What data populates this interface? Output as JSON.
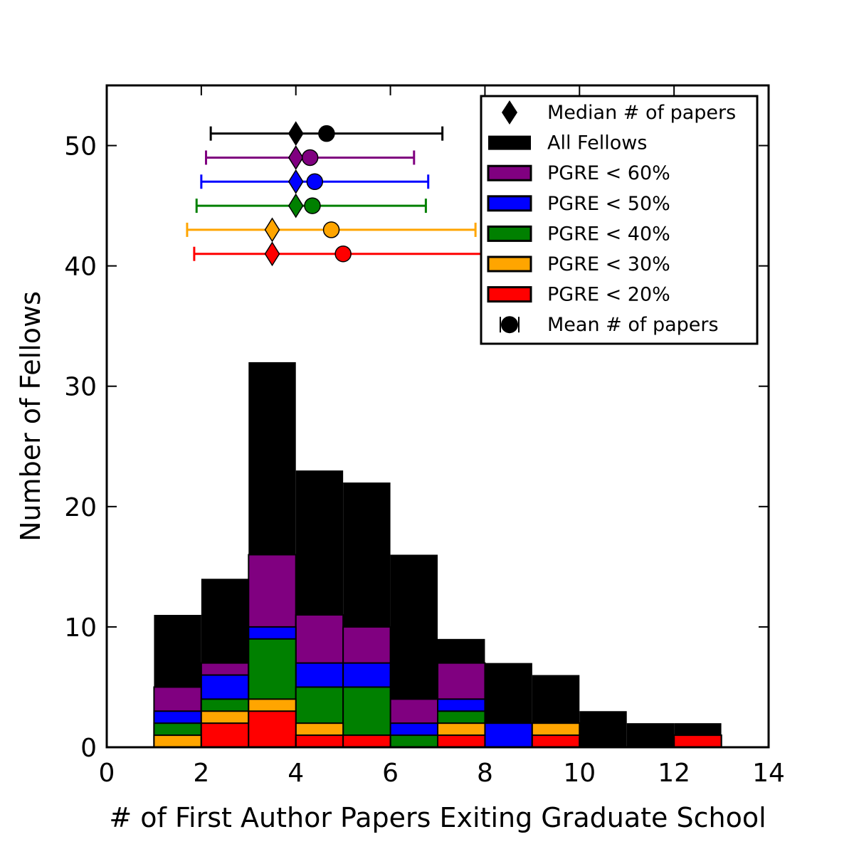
{
  "chart_data": {
    "type": "histogram",
    "title": "",
    "xlabel": "# of First Author Papers Exiting Graduate School",
    "ylabel": "Number of Fellows",
    "xlim": [
      0,
      14
    ],
    "ylim": [
      0,
      55
    ],
    "x_ticks": [
      0,
      2,
      4,
      6,
      8,
      10,
      12,
      14
    ],
    "y_ticks": [
      0,
      10,
      20,
      30,
      40,
      50
    ],
    "grid": false,
    "legend_position": "top-right",
    "bins": [
      [
        1,
        2
      ],
      [
        2,
        3
      ],
      [
        3,
        4
      ],
      [
        4,
        5
      ],
      [
        5,
        6
      ],
      [
        6,
        7
      ],
      [
        7,
        8
      ],
      [
        8,
        9
      ],
      [
        9,
        10
      ],
      [
        10,
        11
      ],
      [
        11,
        12
      ],
      [
        12,
        13
      ]
    ],
    "series": [
      {
        "name": "All Fellows",
        "color": "#000000",
        "values": [
          11,
          14,
          32,
          23,
          22,
          16,
          9,
          7,
          6,
          3,
          2,
          2
        ]
      },
      {
        "name": "PGRE < 60%",
        "color": "#800080",
        "values": [
          5,
          7,
          16,
          11,
          10,
          4,
          7,
          2,
          2,
          0,
          0,
          1
        ]
      },
      {
        "name": "PGRE < 50%",
        "color": "#0000ff",
        "values": [
          3,
          6,
          10,
          7,
          7,
          2,
          4,
          2,
          2,
          0,
          0,
          1
        ]
      },
      {
        "name": "PGRE < 40%",
        "color": "#008000",
        "values": [
          2,
          4,
          9,
          5,
          5,
          1,
          3,
          0,
          2,
          0,
          0,
          1
        ]
      },
      {
        "name": "PGRE < 30%",
        "color": "#ffa500",
        "values": [
          1,
          3,
          4,
          2,
          1,
          0,
          2,
          0,
          2,
          0,
          0,
          1
        ]
      },
      {
        "name": "PGRE < 20%",
        "color": "#ff0000",
        "values": [
          0,
          2,
          3,
          1,
          1,
          0,
          1,
          0,
          1,
          0,
          0,
          1
        ]
      }
    ],
    "summary_markers": [
      {
        "group": "All Fellows",
        "color": "#000000",
        "y": 51,
        "median": 4.0,
        "mean": 4.65,
        "err_low": 2.2,
        "err_high": 7.1
      },
      {
        "group": "PGRE < 60%",
        "color": "#800080",
        "y": 49,
        "median": 4.0,
        "mean": 4.3,
        "err_low": 2.1,
        "err_high": 6.5
      },
      {
        "group": "PGRE < 50%",
        "color": "#0000ff",
        "y": 47,
        "median": 4.0,
        "mean": 4.4,
        "err_low": 2.0,
        "err_high": 6.8
      },
      {
        "group": "PGRE < 40%",
        "color": "#008000",
        "y": 45,
        "median": 4.0,
        "mean": 4.35,
        "err_low": 1.9,
        "err_high": 6.75
      },
      {
        "group": "PGRE < 30%",
        "color": "#ffa500",
        "y": 43,
        "median": 3.5,
        "mean": 4.75,
        "err_low": 1.7,
        "err_high": 7.8
      },
      {
        "group": "PGRE < 20%",
        "color": "#ff0000",
        "y": 41,
        "median": 3.5,
        "mean": 5.0,
        "err_low": 1.85,
        "err_high": 8.15
      }
    ],
    "legend": {
      "median_label": "Median # of papers",
      "mean_label": "Mean # of papers",
      "entries": [
        "All Fellows",
        "PGRE < 60%",
        "PGRE < 50%",
        "PGRE < 40%",
        "PGRE < 30%",
        "PGRE < 20%"
      ]
    }
  }
}
